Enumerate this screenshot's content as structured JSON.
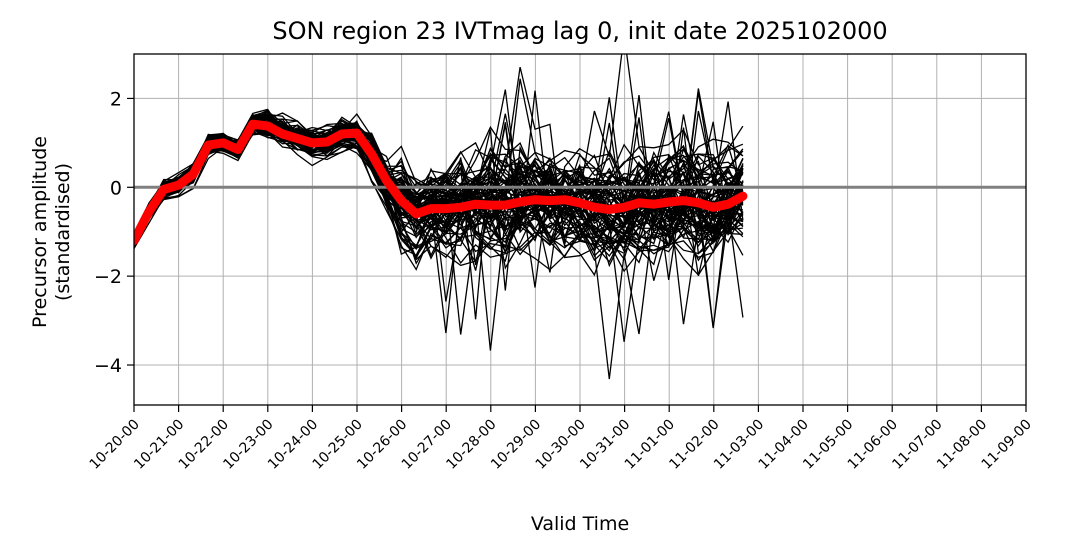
{
  "chart_data": {
    "type": "line",
    "title": "SON region 23 IVTmag lag 0, init date 2025102000",
    "xlabel": "Valid Time",
    "ylabel_lines": [
      "Precursor amplitude",
      "(standardised)"
    ],
    "ylim": [
      -4.9,
      3.0
    ],
    "yticks": [
      2,
      0,
      -2,
      -4
    ],
    "ytick_labels": [
      "2",
      "0",
      "−2",
      "−4"
    ],
    "xtick_labels": [
      "10-20-00",
      "10-21-00",
      "10-22-00",
      "10-23-00",
      "10-24-00",
      "10-25-00",
      "10-26-00",
      "10-27-00",
      "10-28-00",
      "10-29-00",
      "10-30-00",
      "10-31-00",
      "11-01-00",
      "11-02-00",
      "11-03-00",
      "11-04-00",
      "11-05-00",
      "11-06-00",
      "11-07-00",
      "11-08-00",
      "11-09-00"
    ],
    "grid": true,
    "zero_line": 0,
    "x_step_days": 0.333,
    "ensemble_members": 80,
    "ensemble_mean": [
      -1.2,
      -0.55,
      -0.05,
      0.05,
      0.3,
      0.95,
      1.0,
      0.85,
      1.42,
      1.38,
      1.2,
      1.1,
      1.0,
      1.02,
      1.2,
      1.22,
      0.75,
      0.15,
      -0.3,
      -0.6,
      -0.48,
      -0.48,
      -0.45,
      -0.38,
      -0.4,
      -0.4,
      -0.33,
      -0.28,
      -0.3,
      -0.28,
      -0.35,
      -0.45,
      -0.5,
      -0.45,
      -0.35,
      -0.38,
      -0.33,
      -0.3,
      -0.35,
      -0.45,
      -0.38,
      -0.2
    ],
    "colors": {
      "ensemble": "#000000",
      "mean": "#ff0000",
      "zero_line": "#808080",
      "grid": "#b0b0b0"
    }
  }
}
